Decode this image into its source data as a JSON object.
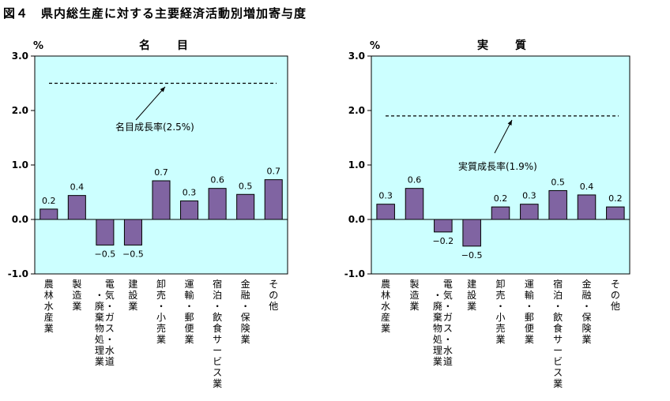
{
  "figure_title": "図４　県内総生産に対する主要経済活動別増加寄与度",
  "chart_data": [
    {
      "type": "bar",
      "title": "名　目",
      "ylabel": "%",
      "ylim": [
        -1.0,
        3.0
      ],
      "yticks": [
        "3.0",
        "2.0",
        "1.0",
        "0.0",
        "-1.0"
      ],
      "categories": [
        "農林水産業",
        "製造業",
        "電気・ガス・水道・廃棄物処理業",
        "建設業",
        "卸売・小売業",
        "運輸・郵便業",
        "宿泊・飲食サービス業",
        "金融・保険業",
        "その他"
      ],
      "category_lines": [
        [
          "農林水産業"
        ],
        [
          "製造業"
        ],
        [
          "電気・ガス・水道",
          "・廃棄物処理業"
        ],
        [
          "建設業"
        ],
        [
          "卸売・小売業"
        ],
        [
          "運輸・郵便業"
        ],
        [
          "宿泊・飲食サービス業"
        ],
        [
          "金融・保険業"
        ],
        [
          "その他"
        ]
      ],
      "values": [
        0.2,
        0.4,
        -0.5,
        -0.5,
        0.7,
        0.3,
        0.6,
        0.5,
        0.7
      ],
      "data_labels": [
        "0.2",
        "0.4",
        "−0.5",
        "−0.5",
        "0.7",
        "0.3",
        "0.6",
        "0.5",
        "0.7"
      ],
      "bar_values": [
        0.19,
        0.44,
        -0.47,
        -0.47,
        0.71,
        0.34,
        0.57,
        0.46,
        0.73
      ],
      "reference_line": {
        "value": 2.5,
        "label": "名目成長率(2.5%)"
      },
      "plot_bg": "#ccffff",
      "bar_color": "#8064a2",
      "grid": false
    },
    {
      "type": "bar",
      "title": "実　質",
      "ylabel": "%",
      "ylim": [
        -1.0,
        3.0
      ],
      "yticks": [
        "3.0",
        "2.0",
        "1.0",
        "0.0",
        "-1.0"
      ],
      "categories": [
        "農林水産業",
        "製造業",
        "電気・ガス・水道・廃棄物処理業",
        "建設業",
        "卸売・小売業",
        "運輸・郵便業",
        "宿泊・飲食サービス業",
        "金融・保険業",
        "その他"
      ],
      "category_lines": [
        [
          "農林水産業"
        ],
        [
          "製造業"
        ],
        [
          "電気・ガス・水道",
          "・廃棄物処理業"
        ],
        [
          "建設業"
        ],
        [
          "卸売・小売業"
        ],
        [
          "運輸・郵便業"
        ],
        [
          "宿泊・飲食サービス業"
        ],
        [
          "金融・保険業"
        ],
        [
          "その他"
        ]
      ],
      "values": [
        0.3,
        0.6,
        -0.2,
        -0.5,
        0.2,
        0.3,
        0.5,
        0.4,
        0.2
      ],
      "data_labels": [
        "0.3",
        "0.6",
        "−0.2",
        "−0.5",
        "0.2",
        "0.3",
        "0.5",
        "0.4",
        "0.2"
      ],
      "bar_values": [
        0.28,
        0.57,
        -0.23,
        -0.49,
        0.23,
        0.28,
        0.53,
        0.45,
        0.23
      ],
      "reference_line": {
        "value": 1.9,
        "label": "実質成長率(1.9%)"
      },
      "plot_bg": "#ccffff",
      "bar_color": "#8064a2",
      "grid": false
    }
  ]
}
